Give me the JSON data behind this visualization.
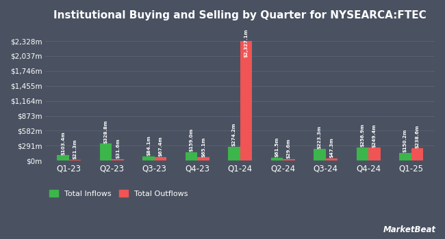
{
  "title": "Institutional Buying and Selling by Quarter for NYSEARCA:FTEC",
  "quarters": [
    "Q1-23",
    "Q2-23",
    "Q3-23",
    "Q4-23",
    "Q1-24",
    "Q2-24",
    "Q3-24",
    "Q4-24",
    "Q1-25"
  ],
  "inflows": [
    103.4,
    328.8,
    84.1,
    159.0,
    274.2,
    61.5,
    223.3,
    256.9,
    150.2
  ],
  "outflows": [
    21.3,
    31.6,
    67.4,
    65.1,
    2327.1,
    29.6,
    47.3,
    249.4,
    238.6
  ],
  "inflow_labels": [
    "$103.4m",
    "$328.8m",
    "$84.1m",
    "$159.0m",
    "$274.2m",
    "$61.5m",
    "$223.3m",
    "$256.9m",
    "$150.2m"
  ],
  "outflow_labels": [
    "$21.3m",
    "$31.6m",
    "$67.4m",
    "$65.1m",
    "$2,327.1m",
    "$29.6m",
    "$47.3m",
    "$249.4m",
    "$238.6m"
  ],
  "bar_width": 0.28,
  "inflow_color": "#3cb54a",
  "outflow_color": "#f05454",
  "bg_color": "#4a5261",
  "plot_bg_color": "#4a5261",
  "text_color": "#ffffff",
  "grid_color": "#5a6275",
  "yticks": [
    0,
    291,
    582,
    873,
    1164,
    1455,
    1746,
    2037,
    2328
  ],
  "ytick_labels": [
    "$0m",
    "$291m",
    "$582m",
    "$873m",
    "$1,164m",
    "$1,455m",
    "$1,746m",
    "$2,037m",
    "$2,328m"
  ],
  "ylim": [
    0,
    2620
  ],
  "legend_inflow": "Total Inflows",
  "legend_outflow": "Total Outflows",
  "watermark": "MarketBeat",
  "title_fontsize": 11,
  "label_fontsize": 5.0,
  "tick_fontsize": 7.5,
  "xlabel_fontsize": 8.5
}
